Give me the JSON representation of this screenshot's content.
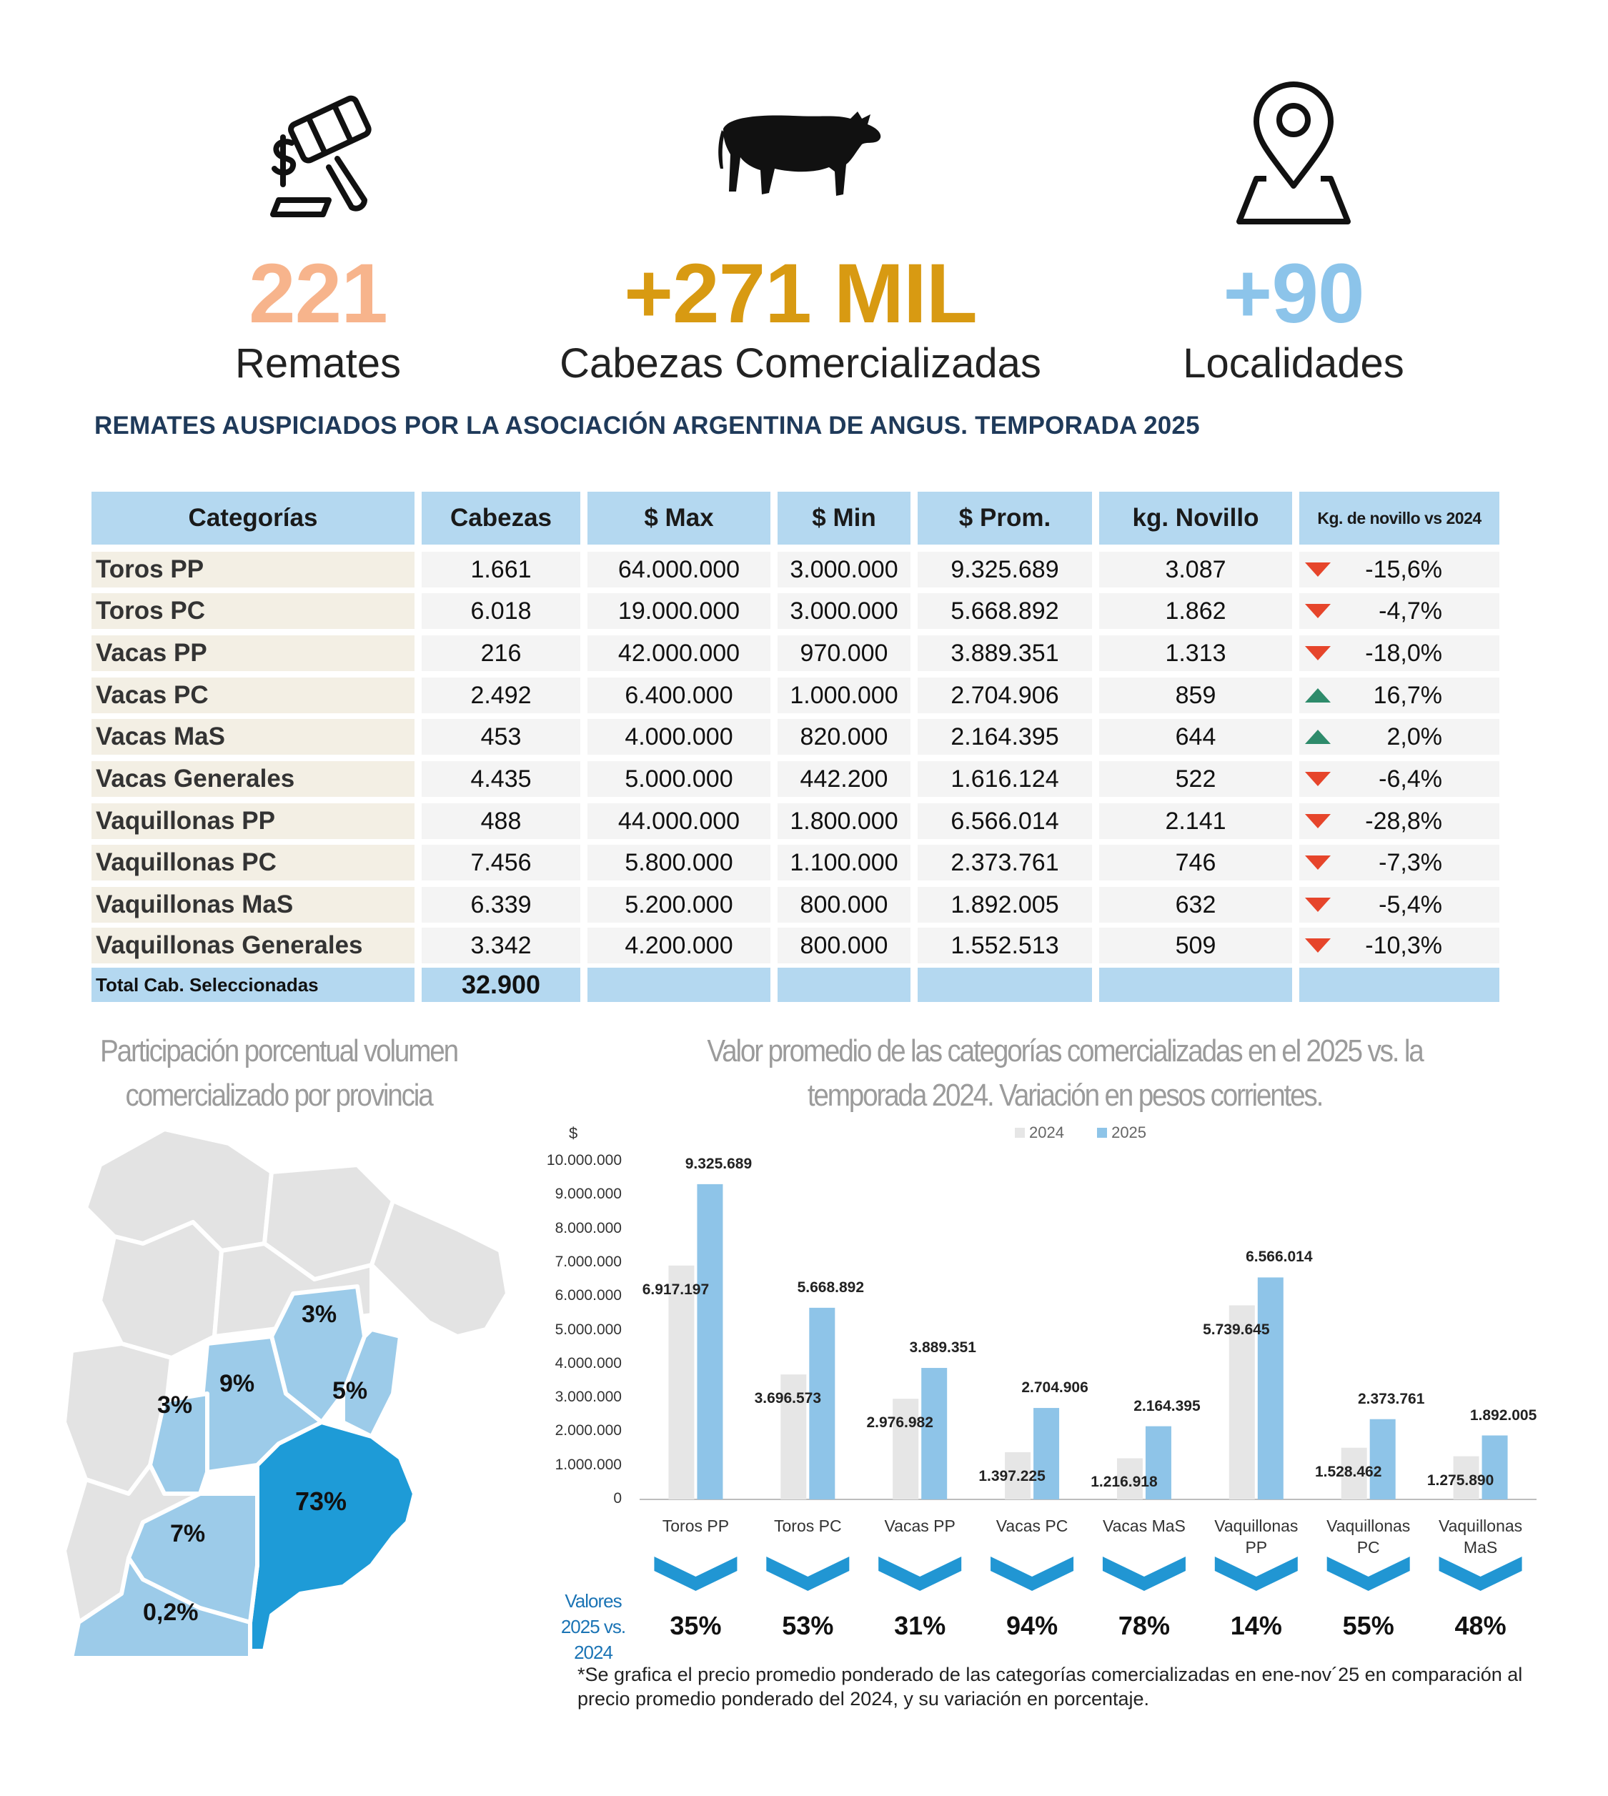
{
  "stats": [
    {
      "value": "221",
      "label": "Remates",
      "color": "#f7b48c",
      "icon": "gavel-icon"
    },
    {
      "value": "+271 MIL",
      "label": "Cabezas Comercializadas",
      "color": "#d89a12",
      "icon": "cow-icon"
    },
    {
      "value": "+90",
      "label": "Localidades",
      "color": "#8cc4ea",
      "icon": "map-pin-icon"
    }
  ],
  "report_title": "REMATES AUSPICIADOS POR LA ASOCIACIÓN ARGENTINA DE ANGUS. TEMPORADA 2025",
  "table": {
    "headers": [
      "Categorías",
      "Cabezas",
      "$ Max",
      "$ Min",
      "$ Prom.",
      "kg. Novillo",
      "Kg. de novillo vs 2024"
    ],
    "rows": [
      {
        "cat": "Toros PP",
        "cabezas": "1.661",
        "max": "64.000.000",
        "min": "3.000.000",
        "prom": "9.325.689",
        "kg": "3.087",
        "dir": "down",
        "var": "-15,6%"
      },
      {
        "cat": "Toros PC",
        "cabezas": "6.018",
        "max": "19.000.000",
        "min": "3.000.000",
        "prom": "5.668.892",
        "kg": "1.862",
        "dir": "down",
        "var": "-4,7%"
      },
      {
        "cat": "Vacas PP",
        "cabezas": "216",
        "max": "42.000.000",
        "min": "970.000",
        "prom": "3.889.351",
        "kg": "1.313",
        "dir": "down",
        "var": "-18,0%"
      },
      {
        "cat": "Vacas PC",
        "cabezas": "2.492",
        "max": "6.400.000",
        "min": "1.000.000",
        "prom": "2.704.906",
        "kg": "859",
        "dir": "up",
        "var": "16,7%"
      },
      {
        "cat": "Vacas MaS",
        "cabezas": "453",
        "max": "4.000.000",
        "min": "820.000",
        "prom": "2.164.395",
        "kg": "644",
        "dir": "up",
        "var": "2,0%"
      },
      {
        "cat": "Vacas Generales",
        "cabezas": "4.435",
        "max": "5.000.000",
        "min": "442.200",
        "prom": "1.616.124",
        "kg": "522",
        "dir": "down",
        "var": "-6,4%"
      },
      {
        "cat": "Vaquillonas PP",
        "cabezas": "488",
        "max": "44.000.000",
        "min": "1.800.000",
        "prom": "6.566.014",
        "kg": "2.141",
        "dir": "down",
        "var": "-28,8%"
      },
      {
        "cat": "Vaquillonas PC",
        "cabezas": "7.456",
        "max": "5.800.000",
        "min": "1.100.000",
        "prom": "2.373.761",
        "kg": "746",
        "dir": "down",
        "var": "-7,3%"
      },
      {
        "cat": "Vaquillonas MaS",
        "cabezas": "6.339",
        "max": "5.200.000",
        "min": "800.000",
        "prom": "1.892.005",
        "kg": "632",
        "dir": "down",
        "var": "-5,4%"
      },
      {
        "cat": "Vaquillonas Generales",
        "cabezas": "3.342",
        "max": "4.200.000",
        "min": "800.000",
        "prom": "1.552.513",
        "kg": "509",
        "dir": "down",
        "var": "-10,3%"
      }
    ],
    "total_label": "Total Cab. Seleccionadas",
    "total_value": "32.900"
  },
  "map": {
    "title_line1": "Participación porcentual volumen",
    "title_line2": "comercializado por provincia",
    "labels": [
      "3%",
      "9%",
      "3%",
      "5%",
      "73%",
      "7%",
      "0,2%"
    ]
  },
  "colors": {
    "bar_2024": "#e6e6e6",
    "bar_2025": "#8ec4e8",
    "header_bg": "#b4d8f0",
    "down": "#e6452b",
    "up": "#2e8b6b",
    "chevron": "#2196d3"
  },
  "chart_data": {
    "type": "bar",
    "title": "Valor promedio de las categorías comercializadas en el 2025 vs. la temporada 2024. Variación en pesos corrientes.",
    "title_line1": "Valor promedio de las categorías comercializadas en el 2025 vs. la",
    "title_line2": "temporada 2024. Variación en pesos corrientes.",
    "ylabel": "$",
    "ylim": [
      0,
      10000000
    ],
    "yticks": [
      "0",
      "1.000.000",
      "2.000.000",
      "3.000.000",
      "4.000.000",
      "5.000.000",
      "6.000.000",
      "7.000.000",
      "8.000.000",
      "9.000.000",
      "10.000.000"
    ],
    "categories": [
      "Toros PP",
      "Toros PC",
      "Vacas PP",
      "Vacas PC",
      "Vacas MaS",
      "Vaquillonas PP",
      "Vaquillonas PC",
      "Vaquillonas MaS"
    ],
    "series": [
      {
        "name": "2024",
        "values": [
          6917197,
          3696573,
          2976982,
          1397225,
          1216918,
          5739645,
          1528462,
          1275890
        ],
        "labels": [
          "6.917.197",
          "3.696.573",
          "2.976.982",
          "1.397.225",
          "1.216.918",
          "5.739.645",
          "1.528.462",
          "1.275.890"
        ]
      },
      {
        "name": "2025",
        "values": [
          9325689,
          5668892,
          3889351,
          2704906,
          2164395,
          6566014,
          2373761,
          1892005
        ],
        "labels": [
          "9.325.689",
          "5.668.892",
          "3.889.351",
          "2.704.906",
          "2.164.395",
          "6.566.014",
          "2.373.761",
          "1.892.005"
        ]
      }
    ],
    "variation_label": "Valores 2025 vs. 2024",
    "variation_label_lines": [
      "Valores",
      "2025 vs.",
      "2024"
    ],
    "variations": [
      "35%",
      "53%",
      "31%",
      "94%",
      "78%",
      "14%",
      "55%",
      "48%"
    ]
  },
  "footnote": "*Se grafica el precio promedio ponderado de las categorías comercializadas en ene-nov´25 en comparación al precio promedio ponderado del 2024, y su variación en porcentaje."
}
